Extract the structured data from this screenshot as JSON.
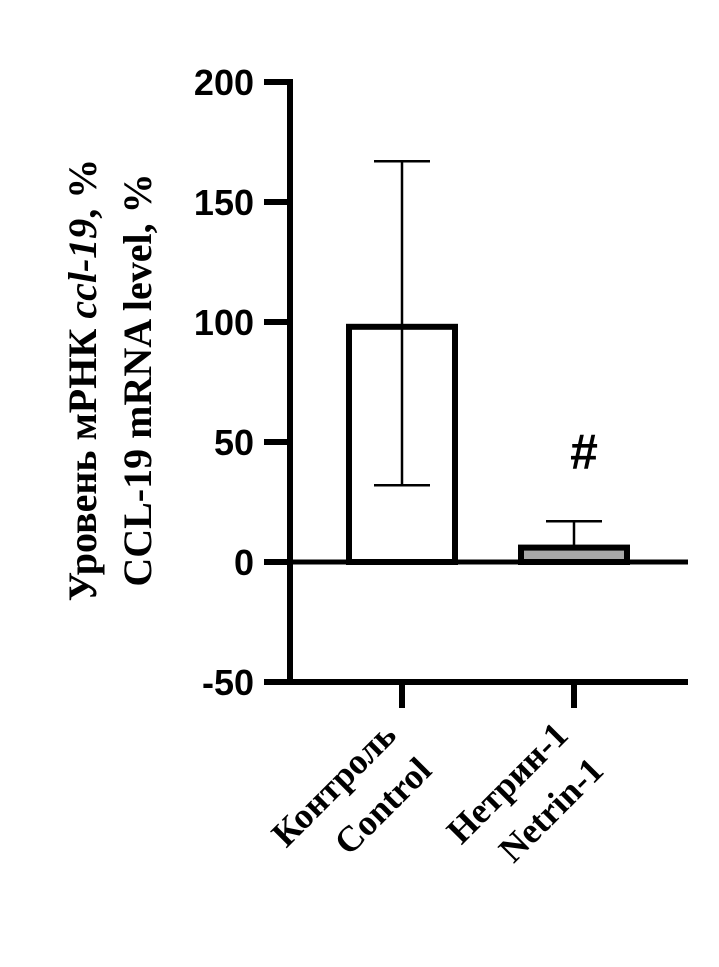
{
  "chart_data": {
    "type": "bar",
    "ylabel_line1_prefix": "Уровень мРНК ",
    "ylabel_line1_gene": "ccl-19",
    "ylabel_line1_suffix": ", %",
    "ylabel_line2": "CCL-19 mRNA level, %",
    "ylim": [
      -50,
      200
    ],
    "yticks": [
      -50,
      0,
      50,
      100,
      150,
      200
    ],
    "categories": [
      {
        "label_ru": "Контроль",
        "label_en": "Control"
      },
      {
        "label_ru": "Нетрин-1",
        "label_en": "Netrin-1"
      }
    ],
    "values": [
      98,
      6
    ],
    "error_upper": [
      167,
      17
    ],
    "error_lower": [
      32,
      6
    ],
    "bar_fill": [
      "#ffffff",
      "#a8a8a8"
    ],
    "annotations": [
      {
        "category_index": 1,
        "text": "#"
      }
    ],
    "grid": false
  }
}
